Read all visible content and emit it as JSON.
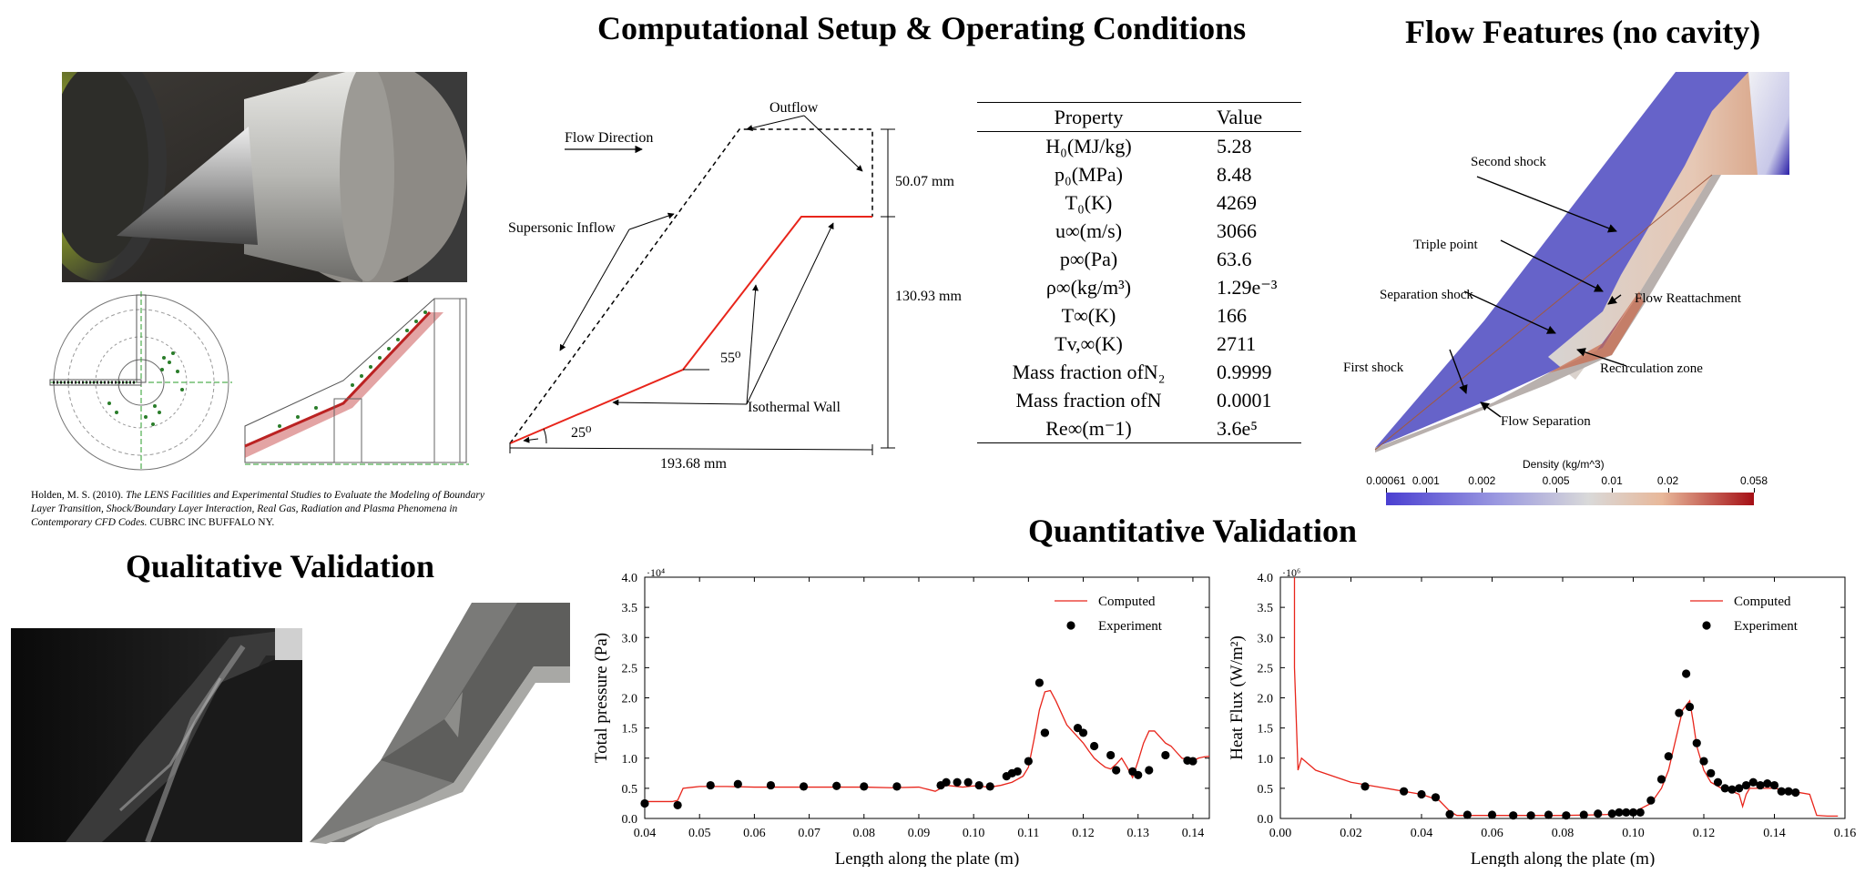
{
  "titles": {
    "setup": "Computational Setup & Operating Conditions",
    "flow_features": "Flow Features (no cavity)",
    "qualitative": "Qualitative Validation",
    "quantitative": "Quantitative Validation"
  },
  "citation": {
    "authors": "Holden, M. S. (2010).",
    "title_italic": "The LENS Facilities and Experimental Studies to Evaluate the Modeling of Boundary Layer Transition, Shock/Boundary Layer Interaction, Real Gas, Radiation and Plasma Phenomena in Contemporary CFD Codes.",
    "publisher": "CUBRC INC BUFFALO NY."
  },
  "schematic": {
    "flow_direction": "Flow Direction",
    "outflow": "Outflow",
    "supersonic_inflow": "Supersonic Inflow",
    "isothermal_wall": "Isothermal Wall",
    "angle1": "25⁰",
    "angle2": "55⁰",
    "dim_top": "50.07 mm",
    "dim_right": "130.93 mm",
    "dim_bottom": "193.68 mm"
  },
  "table": {
    "headers": [
      "Property",
      "Value"
    ],
    "rows": [
      {
        "property": "H₀(MJ/kg)",
        "value": "5.28"
      },
      {
        "property": "p₀(MPa)",
        "value": "8.48"
      },
      {
        "property": "T₀(K)",
        "value": "4269"
      },
      {
        "property": "u∞(m/s)",
        "value": "3066"
      },
      {
        "property": "p∞(Pa)",
        "value": "63.6"
      },
      {
        "property": "ρ∞(kg/m³)",
        "value": "1.29e⁻³"
      },
      {
        "property": "T∞(K)",
        "value": "166"
      },
      {
        "property": "Tv,∞(K)",
        "value": "2711"
      },
      {
        "property": "Mass fraction ofN₂",
        "value": "0.9999"
      },
      {
        "property": "Mass fraction ofN",
        "value": "0.0001"
      },
      {
        "property": "Re∞(m⁻1)",
        "value": "3.6e⁵"
      }
    ]
  },
  "flow_labels": {
    "second_shock": "Second shock",
    "triple_point": "Triple point",
    "separation_shock": "Separation shock",
    "flow_reattachment": "Flow Reattachment",
    "first_shock": "First shock",
    "recirculation_zone": "Recirculation zone",
    "flow_separation": "Flow Separation"
  },
  "colorbar": {
    "title": "Density (kg/m^3)",
    "ticks": [
      "0.00061",
      "0.001",
      "0.002",
      "0.005",
      "0.01",
      "0.02",
      "0.058"
    ],
    "low_color": "#4a3fd1",
    "mid_color": "#d9d9d9",
    "high_color": "#a50f15"
  },
  "chart_data": [
    {
      "type": "scatter",
      "title": "",
      "xlabel": "Length along the plate (m)",
      "ylabel": "Total pressure (Pa)",
      "y_multiplier": "·10⁴",
      "xlim": [
        0.04,
        0.143
      ],
      "ylim": [
        0,
        4.0
      ],
      "xticks": [
        "0.04",
        "0.05",
        "0.06",
        "0.07",
        "0.08",
        "0.09",
        "0.10",
        "0.11",
        "0.12",
        "0.13",
        "0.14"
      ],
      "yticks": [
        "0.0",
        "0.5",
        "1.0",
        "1.5",
        "2.0",
        "2.5",
        "3.0",
        "3.5",
        "4.0"
      ],
      "legend": [
        "Computed",
        "Experiment"
      ],
      "series": [
        {
          "name": "Computed",
          "kind": "line",
          "color": "#e8251b",
          "x": [
            0.04,
            0.045,
            0.046,
            0.047,
            0.05,
            0.055,
            0.06,
            0.07,
            0.08,
            0.085,
            0.09,
            0.093,
            0.095,
            0.098,
            0.1,
            0.103,
            0.105,
            0.107,
            0.108,
            0.109,
            0.11,
            0.111,
            0.112,
            0.113,
            0.114,
            0.115,
            0.116,
            0.117,
            0.118,
            0.119,
            0.12,
            0.121,
            0.122,
            0.123,
            0.124,
            0.125,
            0.126,
            0.127,
            0.128,
            0.129,
            0.13,
            0.131,
            0.132,
            0.133,
            0.134,
            0.135,
            0.136,
            0.137,
            0.138,
            0.139,
            0.14,
            0.141,
            0.142,
            0.143
          ],
          "y": [
            0.28,
            0.28,
            0.3,
            0.5,
            0.53,
            0.53,
            0.52,
            0.52,
            0.52,
            0.51,
            0.52,
            0.45,
            0.55,
            0.52,
            0.54,
            0.52,
            0.55,
            0.6,
            0.65,
            0.7,
            0.85,
            1.3,
            1.8,
            2.1,
            2.12,
            1.95,
            1.75,
            1.55,
            1.45,
            1.35,
            1.25,
            1.12,
            1.0,
            0.92,
            0.85,
            0.82,
            0.9,
            1.0,
            0.85,
            0.68,
            0.95,
            1.25,
            1.45,
            1.45,
            1.35,
            1.25,
            1.2,
            1.1,
            1.0,
            0.98,
            0.95,
            1.0,
            1.02,
            1.03
          ]
        },
        {
          "name": "Experiment",
          "kind": "points",
          "color": "#000000",
          "x": [
            0.04,
            0.046,
            0.052,
            0.057,
            0.063,
            0.069,
            0.075,
            0.08,
            0.086,
            0.094,
            0.095,
            0.097,
            0.099,
            0.101,
            0.103,
            0.106,
            0.107,
            0.108,
            0.11,
            0.112,
            0.113,
            0.113,
            0.119,
            0.12,
            0.122,
            0.125,
            0.126,
            0.129,
            0.13,
            0.132,
            0.135,
            0.139,
            0.14
          ],
          "y": [
            0.25,
            0.22,
            0.55,
            0.57,
            0.55,
            0.53,
            0.54,
            0.53,
            0.53,
            0.55,
            0.6,
            0.6,
            0.6,
            0.55,
            0.53,
            0.7,
            0.75,
            0.78,
            0.95,
            2.25,
            1.42,
            1.42,
            1.5,
            1.42,
            1.2,
            1.05,
            0.8,
            0.78,
            0.72,
            0.8,
            1.05,
            0.96,
            0.95
          ]
        }
      ]
    },
    {
      "type": "scatter",
      "title": "",
      "xlabel": "Length along the plate (m)",
      "ylabel": "Heat Flux (W/m²)",
      "y_multiplier": "·10⁶",
      "xlim": [
        0.0,
        0.16
      ],
      "ylim": [
        0,
        4.0
      ],
      "xticks": [
        "0.00",
        "0.02",
        "0.04",
        "0.06",
        "0.08",
        "0.10",
        "0.12",
        "0.14",
        "0.16"
      ],
      "yticks": [
        "0.0",
        "0.5",
        "1.0",
        "1.5",
        "2.0",
        "2.5",
        "3.0",
        "3.5",
        "4.0"
      ],
      "legend": [
        "Computed",
        "Experiment"
      ],
      "series": [
        {
          "name": "Computed",
          "kind": "line",
          "color": "#e8251b",
          "x": [
            0.004,
            0.004,
            0.005,
            0.006,
            0.008,
            0.01,
            0.02,
            0.03,
            0.04,
            0.045,
            0.048,
            0.05,
            0.06,
            0.07,
            0.08,
            0.09,
            0.095,
            0.1,
            0.105,
            0.108,
            0.11,
            0.112,
            0.114,
            0.116,
            0.117,
            0.118,
            0.12,
            0.122,
            0.125,
            0.128,
            0.13,
            0.131,
            0.132,
            0.133,
            0.135,
            0.14,
            0.145,
            0.15,
            0.152,
            0.155,
            0.158
          ],
          "y": [
            4.0,
            2.5,
            0.8,
            1.0,
            0.9,
            0.8,
            0.6,
            0.5,
            0.4,
            0.3,
            0.12,
            0.05,
            0.05,
            0.05,
            0.05,
            0.06,
            0.07,
            0.1,
            0.25,
            0.5,
            0.8,
            1.3,
            1.8,
            1.95,
            1.6,
            1.2,
            0.8,
            0.6,
            0.5,
            0.45,
            0.4,
            0.2,
            0.4,
            0.5,
            0.5,
            0.5,
            0.45,
            0.4,
            0.05,
            0.04,
            0.04
          ]
        },
        {
          "name": "Experiment",
          "kind": "points",
          "color": "#000000",
          "x": [
            0.024,
            0.035,
            0.04,
            0.044,
            0.048,
            0.053,
            0.06,
            0.066,
            0.071,
            0.076,
            0.081,
            0.086,
            0.09,
            0.094,
            0.096,
            0.098,
            0.1,
            0.102,
            0.105,
            0.108,
            0.11,
            0.113,
            0.115,
            0.116,
            0.118,
            0.12,
            0.122,
            0.124,
            0.126,
            0.128,
            0.13,
            0.132,
            0.134,
            0.136,
            0.138,
            0.14,
            0.142,
            0.144,
            0.146
          ],
          "y": [
            0.53,
            0.45,
            0.4,
            0.35,
            0.07,
            0.06,
            0.06,
            0.05,
            0.05,
            0.06,
            0.05,
            0.06,
            0.08,
            0.08,
            0.1,
            0.1,
            0.1,
            0.1,
            0.3,
            0.65,
            1.03,
            1.75,
            2.4,
            1.85,
            1.25,
            0.95,
            0.75,
            0.6,
            0.5,
            0.48,
            0.5,
            0.55,
            0.6,
            0.55,
            0.58,
            0.55,
            0.45,
            0.45,
            0.43
          ]
        }
      ]
    }
  ]
}
